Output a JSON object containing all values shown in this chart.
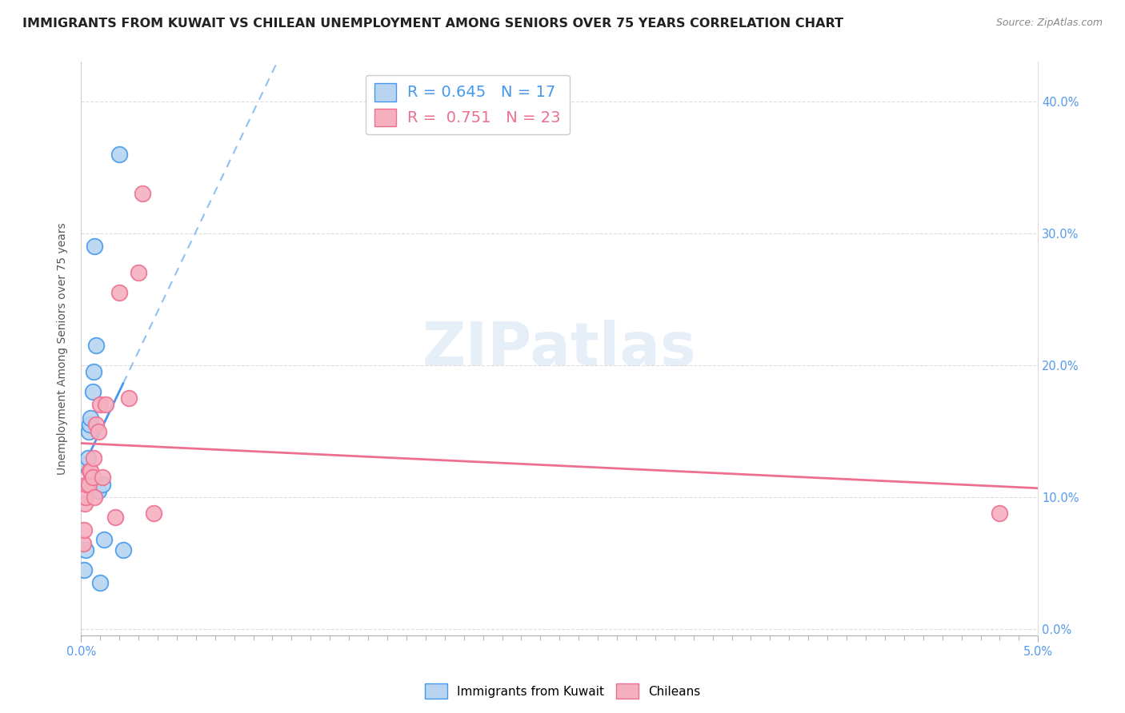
{
  "title": "IMMIGRANTS FROM KUWAIT VS CHILEAN UNEMPLOYMENT AMONG SENIORS OVER 75 YEARS CORRELATION CHART",
  "source": "Source: ZipAtlas.com",
  "ylabel": "Unemployment Among Seniors over 75 years",
  "legend_label1": "Immigrants from Kuwait",
  "legend_label2": "Chileans",
  "r1": 0.645,
  "n1": 17,
  "r2": 0.751,
  "n2": 23,
  "xlim": [
    0.0,
    0.05
  ],
  "ylim": [
    -0.005,
    0.43
  ],
  "yticks": [
    0.0,
    0.1,
    0.2,
    0.3,
    0.4
  ],
  "color_blue": "#b8d4f0",
  "color_pink": "#f5b0c0",
  "line_blue": "#4499ee",
  "line_pink": "#ee7090",
  "kuwait_x": [
    0.00015,
    0.00025,
    0.0003,
    0.00035,
    0.0004,
    0.00045,
    0.0005,
    0.0006,
    0.00065,
    0.0007,
    0.0008,
    0.0009,
    0.001,
    0.0011,
    0.0012,
    0.002,
    0.0022
  ],
  "kuwait_y": [
    0.045,
    0.06,
    0.125,
    0.13,
    0.15,
    0.155,
    0.16,
    0.18,
    0.195,
    0.29,
    0.215,
    0.105,
    0.035,
    0.11,
    0.068,
    0.36,
    0.06
  ],
  "chilean_x": [
    0.0001,
    0.00015,
    0.0002,
    0.00025,
    0.0003,
    0.0004,
    0.00045,
    0.0005,
    0.0006,
    0.00065,
    0.0007,
    0.0008,
    0.0009,
    0.001,
    0.0011,
    0.0013,
    0.0018,
    0.002,
    0.0025,
    0.003,
    0.0032,
    0.0038,
    0.048
  ],
  "chilean_y": [
    0.065,
    0.075,
    0.095,
    0.1,
    0.11,
    0.11,
    0.12,
    0.12,
    0.115,
    0.13,
    0.1,
    0.155,
    0.15,
    0.17,
    0.115,
    0.17,
    0.085,
    0.255,
    0.175,
    0.27,
    0.33,
    0.088,
    0.088
  ],
  "watermark": "ZIPatlas",
  "background_color": "#ffffff",
  "title_fontsize": 11.5,
  "axis_label_fontsize": 10,
  "tick_fontsize": 10.5,
  "tick_color": "#5599ee",
  "grid_color": "#dddddd"
}
